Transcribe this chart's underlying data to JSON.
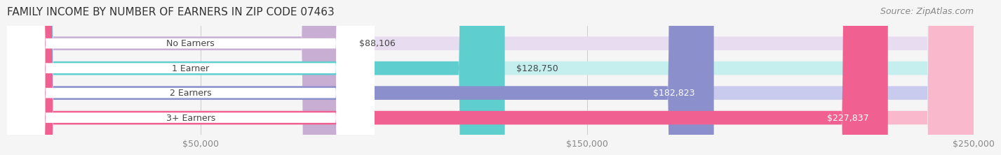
{
  "title": "FAMILY INCOME BY NUMBER OF EARNERS IN ZIP CODE 07463",
  "source": "Source: ZipAtlas.com",
  "categories": [
    "No Earners",
    "1 Earner",
    "2 Earners",
    "3+ Earners"
  ],
  "values": [
    88106,
    128750,
    182823,
    227837
  ],
  "labels": [
    "$88,106",
    "$128,750",
    "$182,823",
    "$227,837"
  ],
  "bar_colors": [
    "#c9aed4",
    "#5ecece",
    "#8b8fcc",
    "#f06090"
  ],
  "bar_bg_colors": [
    "#e8ddf0",
    "#c5efef",
    "#c8caee",
    "#f9b8cc"
  ],
  "xlim": [
    0,
    250000
  ],
  "xticks": [
    50000,
    150000,
    250000
  ],
  "xtick_labels": [
    "$50,000",
    "$150,000",
    "$250,000"
  ],
  "background_color": "#f5f5f5",
  "bar_height": 0.55,
  "title_fontsize": 11,
  "source_fontsize": 9,
  "label_fontsize": 9,
  "tick_fontsize": 9
}
